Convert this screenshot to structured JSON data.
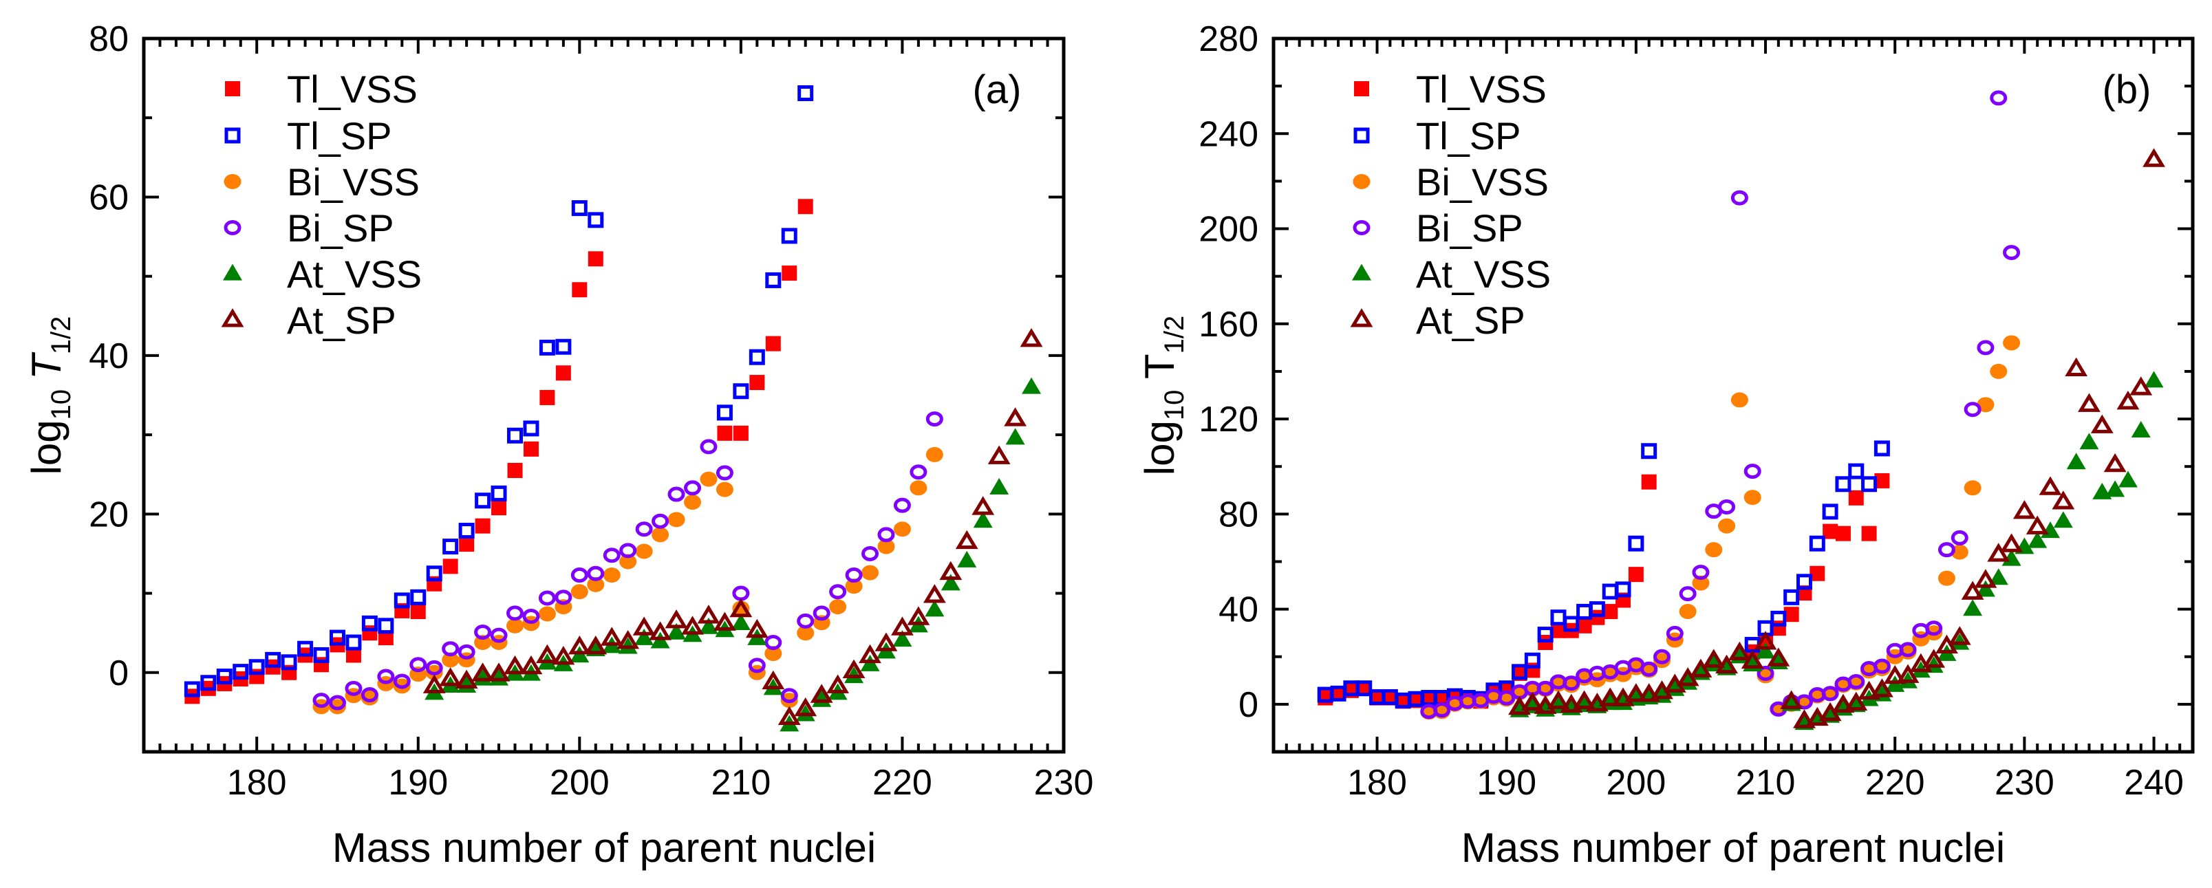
{
  "legend": [
    {
      "name": "Tl_VSS",
      "color": "#FF0000",
      "marker": "square",
      "filled": true
    },
    {
      "name": "Tl_SP",
      "color": "#0000FF",
      "marker": "square",
      "filled": false
    },
    {
      "name": "Bi_VSS",
      "color": "#FF8000",
      "marker": "circle",
      "filled": true
    },
    {
      "name": "Bi_SP",
      "color": "#8000FF",
      "marker": "circle",
      "filled": false
    },
    {
      "name": "At_VSS",
      "color": "#008000",
      "marker": "triangle",
      "filled": true
    },
    {
      "name": "At_SP",
      "color": "#800000",
      "marker": "triangle",
      "filled": false
    }
  ],
  "chart_data": [
    {
      "type": "scatter",
      "panel_label": "(a)",
      "xlabel": "Mass number of parent nuclei",
      "ylabel": {
        "base": "log",
        "base_sub": "10",
        "var": "T",
        "var_sub": "1/2",
        "var_italic": true
      },
      "xlim": [
        173,
        230
      ],
      "ylim": [
        -10,
        80
      ],
      "xticks": [
        180,
        190,
        200,
        210,
        220,
        230
      ],
      "yticks": [
        0,
        20,
        40,
        60,
        80
      ],
      "x_minor_step": 1,
      "y_minor_step": 10,
      "grid": false,
      "legend_position": "top-left",
      "series": [
        {
          "name": "Tl_VSS",
          "x": [
            176,
            177,
            178,
            179,
            180,
            181,
            182,
            183,
            184,
            185,
            186,
            187,
            188,
            189,
            190,
            191,
            192,
            193,
            194,
            195,
            196,
            197,
            198,
            199,
            200,
            201,
            209,
            210,
            211,
            212,
            213,
            214
          ],
          "y": [
            -3,
            -2,
            -1.4,
            -0.8,
            -0.5,
            0.7,
            0,
            2.2,
            1,
            3.5,
            2.2,
            5,
            4.4,
            7.8,
            7.7,
            11.2,
            13.4,
            16.2,
            18.5,
            20.8,
            25.5,
            28.2,
            34.7,
            37.8,
            48.3,
            52.2,
            30.2,
            30.2,
            36.6,
            41.5,
            50.4,
            58.8
          ]
        },
        {
          "name": "Tl_SP",
          "x": [
            176,
            177,
            178,
            179,
            180,
            181,
            182,
            183,
            184,
            185,
            186,
            187,
            188,
            189,
            190,
            191,
            192,
            193,
            194,
            195,
            196,
            197,
            198,
            199,
            200,
            201,
            209,
            210,
            211,
            212,
            213,
            214
          ],
          "y": [
            -2.1,
            -1.3,
            -0.5,
            0.1,
            0.7,
            1.6,
            1.3,
            3,
            2.2,
            4.4,
            3.8,
            6.2,
            5.9,
            9.1,
            9.5,
            12.5,
            15.9,
            17.9,
            21.7,
            22.6,
            29.9,
            30.8,
            41,
            41.1,
            58.6,
            57.1,
            32.8,
            35.5,
            39.8,
            49.5,
            55.1,
            73.1
          ]
        },
        {
          "name": "Bi_VSS",
          "x": [
            184,
            185,
            186,
            187,
            188,
            189,
            190,
            191,
            192,
            193,
            194,
            195,
            196,
            197,
            198,
            199,
            200,
            201,
            202,
            203,
            204,
            205,
            206,
            207,
            208,
            209,
            210,
            211,
            212,
            213,
            214,
            215,
            216,
            217,
            218,
            219,
            220,
            221,
            222
          ],
          "y": [
            -4.3,
            -4.3,
            -2.9,
            -3.2,
            -1.4,
            -1.7,
            -0.2,
            0,
            1.6,
            1.6,
            3.8,
            3.8,
            5.9,
            6.2,
            7.4,
            8.3,
            10.2,
            11.1,
            12.3,
            14,
            15.3,
            17.4,
            19.3,
            21.5,
            24.4,
            23.1,
            8.1,
            0,
            2.4,
            -3.5,
            5,
            6.3,
            8.3,
            10.9,
            12.6,
            15.9,
            18.1,
            23.3,
            27.5
          ]
        },
        {
          "name": "Bi_SP",
          "x": [
            184,
            185,
            186,
            187,
            188,
            189,
            190,
            191,
            192,
            193,
            194,
            195,
            196,
            197,
            198,
            199,
            200,
            201,
            202,
            203,
            204,
            205,
            206,
            207,
            208,
            209,
            210,
            211,
            212,
            213,
            214,
            215,
            216,
            217,
            218,
            219,
            220,
            221,
            222
          ],
          "y": [
            -3.5,
            -3.8,
            -2,
            -2.8,
            -0.5,
            -1.1,
            1,
            0.6,
            3,
            2.6,
            5.1,
            4.7,
            7.5,
            7.1,
            9.4,
            9.5,
            12.3,
            12.5,
            14.8,
            15.4,
            18.1,
            19.1,
            22.5,
            23.3,
            28.5,
            25.2,
            10,
            0.9,
            3.8,
            -2.9,
            6.5,
            7.5,
            10.2,
            12.3,
            15,
            17.4,
            21.1,
            25.3,
            32
          ]
        },
        {
          "name": "At_VSS",
          "x": [
            191,
            192,
            193,
            194,
            195,
            196,
            197,
            198,
            199,
            200,
            201,
            202,
            203,
            204,
            205,
            206,
            207,
            208,
            209,
            210,
            211,
            212,
            213,
            214,
            215,
            216,
            217,
            218,
            219,
            220,
            221,
            222,
            223,
            224,
            225,
            226,
            227,
            228
          ],
          "y": [
            -2.6,
            -1.7,
            -1.7,
            -0.8,
            -0.8,
            -0.2,
            -0.2,
            1.2,
            1,
            2.1,
            2.9,
            3.3,
            3.2,
            4.3,
            3.9,
            5,
            4.7,
            5.7,
            5.3,
            6.2,
            4.3,
            -2,
            -6.6,
            -5.3,
            -3.5,
            -2.6,
            -0.5,
            1,
            2.6,
            4.1,
            5.9,
            7.9,
            11.2,
            14.1,
            19.1,
            23.3,
            29.6,
            36
          ]
        },
        {
          "name": "At_SP",
          "x": [
            191,
            192,
            193,
            194,
            195,
            196,
            197,
            198,
            199,
            200,
            201,
            202,
            203,
            204,
            205,
            206,
            207,
            208,
            209,
            210,
            211,
            212,
            213,
            214,
            215,
            216,
            217,
            218,
            219,
            220,
            221,
            222,
            223,
            224,
            225,
            226,
            227,
            228
          ],
          "y": [
            -1.7,
            -0.8,
            -1.1,
            -0.2,
            -0.2,
            0.7,
            0.7,
            2.1,
            1.9,
            3.2,
            3.2,
            4.3,
            3.9,
            5.6,
            5,
            6.5,
            5.7,
            7.1,
            6.2,
            7.9,
            5.3,
            -1.2,
            -5.7,
            -4.6,
            -2.9,
            -1.7,
            0.2,
            2.1,
            3.6,
            5.6,
            6.9,
            9.7,
            12.6,
            16.5,
            20.8,
            27.2,
            32,
            42
          ]
        }
      ]
    },
    {
      "type": "scatter",
      "panel_label": "(b)",
      "xlabel": "Mass number of parent nuclei",
      "ylabel": {
        "base": "log",
        "base_sub": "10",
        "var": " T",
        "var_sub": "1/2",
        "var_italic": false
      },
      "xlim": [
        172,
        243
      ],
      "ylim": [
        -20,
        280
      ],
      "xticks": [
        180,
        190,
        200,
        210,
        220,
        230,
        240
      ],
      "yticks": [
        0,
        40,
        80,
        120,
        160,
        200,
        240,
        280
      ],
      "x_minor_step": 1,
      "y_minor_step": 20,
      "grid": false,
      "legend_position": "top-left",
      "series": [
        {
          "name": "Tl_VSS",
          "x": [
            176,
            177,
            178,
            179,
            180,
            181,
            182,
            183,
            184,
            185,
            186,
            187,
            188,
            189,
            190,
            191,
            192,
            193,
            194,
            195,
            196,
            197,
            198,
            199,
            200,
            201,
            209,
            210,
            211,
            212,
            213,
            214,
            215,
            216,
            217,
            218,
            219
          ],
          "y": [
            2.7,
            4.5,
            5.8,
            6.7,
            2.7,
            2.7,
            1.3,
            1.6,
            2.2,
            2.2,
            2.7,
            2.2,
            1.3,
            4.9,
            5.8,
            13,
            14.3,
            26,
            31,
            31,
            33,
            36.5,
            39,
            43.8,
            54.6,
            93.5,
            22,
            26.6,
            32,
            37.8,
            46.8,
            55,
            72.7,
            71.8,
            86.8,
            71.8,
            94
          ]
        },
        {
          "name": "Tl_SP",
          "x": [
            176,
            177,
            178,
            179,
            180,
            181,
            182,
            183,
            184,
            185,
            186,
            187,
            188,
            189,
            190,
            191,
            192,
            193,
            194,
            195,
            196,
            197,
            198,
            199,
            200,
            201,
            209,
            210,
            211,
            212,
            213,
            214,
            215,
            216,
            217,
            218,
            219
          ],
          "y": [
            4,
            4.5,
            6.7,
            6.7,
            3,
            3,
            1.6,
            2.2,
            2.7,
            2.7,
            3.4,
            2.7,
            2.2,
            5.8,
            6.7,
            13.6,
            18.4,
            29.3,
            36.5,
            33.8,
            38.9,
            40,
            47.4,
            48.3,
            67.6,
            106.5,
            25,
            32,
            36,
            45,
            51.5,
            67.6,
            81,
            92.6,
            98,
            92.6,
            107.6
          ]
        },
        {
          "name": "Bi_VSS",
          "x": [
            184,
            185,
            186,
            187,
            188,
            189,
            190,
            191,
            192,
            193,
            194,
            195,
            196,
            197,
            198,
            199,
            200,
            201,
            202,
            203,
            204,
            205,
            206,
            207,
            208,
            209,
            210,
            211,
            212,
            213,
            214,
            215,
            216,
            217,
            218,
            219,
            220,
            221,
            222,
            223,
            224,
            225,
            226,
            227,
            228,
            229
          ],
          "y": [
            -3.3,
            -3,
            0,
            1,
            1.3,
            2.7,
            2.2,
            4.9,
            6.3,
            6.3,
            8.5,
            8,
            11,
            10.3,
            12.5,
            12.5,
            15.4,
            14.3,
            18.4,
            27,
            39,
            51,
            65,
            75,
            128,
            87,
            12,
            -2,
            0,
            1,
            3.5,
            4.5,
            8,
            9,
            14,
            15,
            20,
            22,
            27.5,
            30,
            53,
            64,
            91,
            126,
            140,
            152
          ]
        },
        {
          "name": "Bi_SP",
          "x": [
            184,
            185,
            186,
            187,
            188,
            189,
            190,
            191,
            192,
            193,
            194,
            195,
            196,
            197,
            198,
            199,
            200,
            201,
            202,
            203,
            204,
            205,
            206,
            207,
            208,
            209,
            210,
            211,
            212,
            213,
            214,
            215,
            216,
            217,
            218,
            219,
            220,
            221,
            222,
            223,
            224,
            225,
            226,
            227,
            228,
            229
          ],
          "y": [
            -3,
            -2.4,
            0.4,
            1.3,
            1.6,
            3.4,
            2.7,
            5.2,
            6.7,
            6.7,
            9.4,
            8.9,
            12,
            13,
            13.6,
            15.4,
            16.6,
            14.8,
            20,
            29.8,
            46.5,
            55.5,
            81.2,
            83,
            213,
            98,
            13,
            -2,
            1,
            1,
            4,
            4.5,
            8.5,
            9.5,
            15,
            16,
            22.6,
            23,
            31,
            32,
            65,
            70,
            124,
            150,
            255,
            190
          ]
        },
        {
          "name": "At_VSS",
          "x": [
            191,
            192,
            193,
            194,
            195,
            196,
            197,
            198,
            199,
            200,
            201,
            202,
            203,
            204,
            205,
            206,
            207,
            208,
            209,
            210,
            211,
            212,
            213,
            214,
            215,
            216,
            217,
            218,
            219,
            220,
            221,
            222,
            223,
            224,
            225,
            226,
            227,
            228,
            229,
            230,
            231,
            232,
            233,
            234,
            235,
            236,
            237,
            238,
            239,
            240
          ],
          "y": [
            -2.7,
            -1,
            -2.4,
            -1,
            -1.8,
            -0.5,
            -1,
            0.4,
            0.4,
            2.2,
            2.7,
            3.4,
            6.3,
            8.9,
            13,
            16.6,
            15,
            20,
            16.6,
            22,
            17.5,
            0,
            -8,
            -6,
            -5,
            -2,
            -0.5,
            2,
            4,
            8,
            9.5,
            14,
            16,
            21,
            25.7,
            40,
            48,
            53,
            61,
            66,
            68.5,
            72.7,
            77,
            101.6,
            110,
            89,
            90,
            94,
            115,
            136
          ]
        },
        {
          "name": "At_SP",
          "x": [
            191,
            192,
            193,
            194,
            195,
            196,
            197,
            198,
            199,
            200,
            201,
            202,
            203,
            204,
            205,
            206,
            207,
            208,
            209,
            210,
            211,
            212,
            213,
            214,
            215,
            216,
            217,
            218,
            219,
            220,
            221,
            222,
            223,
            224,
            225,
            226,
            227,
            228,
            229,
            230,
            231,
            232,
            233,
            234,
            235,
            236,
            237,
            238,
            239,
            240
          ],
          "y": [
            -1.4,
            0.4,
            -1,
            1,
            -0.5,
            1,
            0,
            2.2,
            2.2,
            4,
            4,
            5.2,
            8,
            10.7,
            14.3,
            18.4,
            16,
            21.5,
            18,
            26,
            19,
            1,
            -7,
            -6,
            -4,
            -0.5,
            0.4,
            5,
            6,
            11.6,
            12,
            16.6,
            18.4,
            24.4,
            28,
            47,
            52,
            63,
            67,
            81,
            74.5,
            91,
            85,
            141,
            126,
            117,
            100.7,
            127,
            133,
            229
          ]
        }
      ]
    }
  ]
}
